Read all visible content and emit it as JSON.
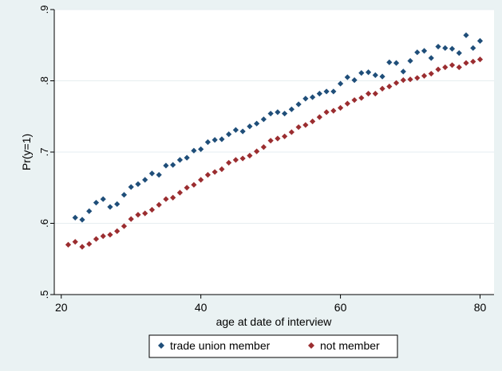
{
  "chart_data": {
    "type": "scatter",
    "title": "",
    "xlabel": "age at date of interview",
    "ylabel": "Pr(y=1)",
    "xlim": [
      19,
      82
    ],
    "ylim": [
      0.5,
      0.9
    ],
    "x_ticks": [
      {
        "value": 20,
        "label": "20"
      },
      {
        "value": 40,
        "label": "40"
      },
      {
        "value": 60,
        "label": "60"
      },
      {
        "value": 80,
        "label": "80"
      }
    ],
    "y_ticks": [
      {
        "value": 0.5,
        "label": ".5"
      },
      {
        "value": 0.6,
        "label": ".6"
      },
      {
        "value": 0.7,
        "label": ".7"
      },
      {
        "value": 0.8,
        "label": ".8"
      },
      {
        "value": 0.9,
        "label": ".9"
      }
    ],
    "grid": true,
    "legend_position": "bottom",
    "series": [
      {
        "name": "trade union member",
        "color": "#1f4e79",
        "marker": "diamond",
        "x": [
          22,
          23,
          24,
          25,
          26,
          27,
          28,
          29,
          30,
          31,
          32,
          33,
          34,
          35,
          36,
          37,
          38,
          39,
          40,
          41,
          42,
          43,
          44,
          45,
          46,
          47,
          48,
          49,
          50,
          51,
          52,
          53,
          54,
          55,
          56,
          57,
          58,
          59,
          60,
          61,
          62,
          63,
          64,
          65,
          66,
          67,
          68,
          69,
          70,
          71,
          72,
          73,
          74,
          75,
          76,
          77,
          78,
          79,
          80
        ],
        "y": [
          0.608,
          0.605,
          0.617,
          0.629,
          0.634,
          0.623,
          0.627,
          0.64,
          0.651,
          0.655,
          0.661,
          0.67,
          0.668,
          0.681,
          0.682,
          0.689,
          0.692,
          0.702,
          0.704,
          0.714,
          0.717,
          0.718,
          0.725,
          0.731,
          0.729,
          0.736,
          0.74,
          0.746,
          0.754,
          0.756,
          0.754,
          0.76,
          0.767,
          0.775,
          0.777,
          0.782,
          0.785,
          0.785,
          0.796,
          0.805,
          0.801,
          0.811,
          0.812,
          0.808,
          0.806,
          0.826,
          0.825,
          0.813,
          0.828,
          0.84,
          0.842,
          0.832,
          0.848,
          0.846,
          0.845,
          0.839,
          0.864,
          0.846,
          0.856
        ]
      },
      {
        "name": "not member",
        "color": "#9b2d30",
        "marker": "diamond",
        "x": [
          21,
          22,
          23,
          24,
          25,
          26,
          27,
          28,
          29,
          30,
          31,
          32,
          33,
          34,
          35,
          36,
          37,
          38,
          39,
          40,
          41,
          42,
          43,
          44,
          45,
          46,
          47,
          48,
          49,
          50,
          51,
          52,
          53,
          54,
          55,
          56,
          57,
          58,
          59,
          60,
          61,
          62,
          63,
          64,
          65,
          66,
          67,
          68,
          69,
          70,
          71,
          72,
          73,
          74,
          75,
          76,
          77,
          78,
          79,
          80
        ],
        "y": [
          0.57,
          0.574,
          0.567,
          0.571,
          0.578,
          0.582,
          0.584,
          0.589,
          0.596,
          0.606,
          0.612,
          0.614,
          0.619,
          0.626,
          0.634,
          0.636,
          0.643,
          0.65,
          0.654,
          0.661,
          0.668,
          0.672,
          0.676,
          0.685,
          0.689,
          0.691,
          0.695,
          0.701,
          0.707,
          0.716,
          0.719,
          0.722,
          0.728,
          0.735,
          0.738,
          0.743,
          0.749,
          0.756,
          0.758,
          0.762,
          0.768,
          0.773,
          0.776,
          0.782,
          0.782,
          0.789,
          0.792,
          0.797,
          0.801,
          0.802,
          0.804,
          0.807,
          0.81,
          0.816,
          0.819,
          0.822,
          0.819,
          0.825,
          0.827,
          0.83
        ]
      }
    ]
  }
}
